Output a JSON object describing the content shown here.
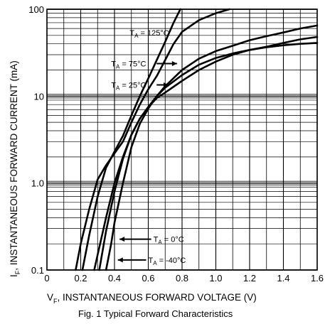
{
  "chart_data": {
    "type": "line",
    "caption": "Fig. 1  Typical Forward Characteristics",
    "xlabel_prefix": "V",
    "xlabel_sub": "F",
    "xlabel_text": ", INSTANTANEOUS FORWARD VOLTAGE (V)",
    "ylabel_prefix": "I",
    "ylabel_sub": "F",
    "ylabel_text": ", INSTANTANEOUS FORWARD CURRENT (mA)",
    "xlim": [
      0,
      1.6
    ],
    "ylim": [
      0.1,
      100
    ],
    "yscale": "log",
    "grid": true,
    "x_ticks": [
      0,
      0.2,
      0.4,
      0.6,
      0.8,
      1.0,
      1.2,
      1.4,
      1.6
    ],
    "x_tick_labels": [
      "0",
      "0.2",
      "0.4",
      "0.6",
      "0.8",
      "1.0",
      "1.2",
      "1.4",
      "1.6"
    ],
    "y_ticks": [
      0.1,
      1,
      10,
      100
    ],
    "y_tick_labels": [
      "0.1",
      "1.0",
      "10",
      "100"
    ],
    "series": [
      {
        "label_prefix": "T",
        "label_sub": "A",
        "label_value": " = 125°C",
        "x": [
          0.17,
          0.2,
          0.25,
          0.3,
          0.35,
          0.4,
          0.45,
          0.5,
          0.55,
          0.6,
          0.65,
          0.7,
          0.75,
          0.8,
          0.9,
          1.0,
          1.08
        ],
        "y": [
          0.1,
          0.2,
          0.5,
          1.1,
          1.6,
          2.2,
          3.0,
          5.0,
          8.0,
          12.0,
          17.0,
          26.0,
          40.0,
          55.0,
          75.0,
          90.0,
          100.0
        ]
      },
      {
        "label_prefix": "T",
        "label_sub": "A",
        "label_value": " = 75°C",
        "x": [
          0.21,
          0.25,
          0.3,
          0.35,
          0.4,
          0.45,
          0.5,
          0.55,
          0.6,
          0.65,
          0.7,
          0.75,
          0.79
        ],
        "y": [
          0.1,
          0.25,
          0.7,
          1.5,
          2.3,
          3.5,
          6.0,
          10.0,
          16.0,
          26.0,
          42.0,
          70.0,
          100.0
        ]
      },
      {
        "label_prefix": "T",
        "label_sub": "A",
        "label_value": " = 25°C",
        "x": [
          0.28,
          0.3,
          0.35,
          0.4,
          0.45,
          0.5,
          0.55,
          0.6,
          0.65,
          0.7,
          0.8,
          0.9,
          1.0,
          1.1,
          1.2,
          1.3,
          1.4,
          1.5,
          1.6
        ],
        "y": [
          0.1,
          0.15,
          0.4,
          1.0,
          2.0,
          3.6,
          5.5,
          7.5,
          9.5,
          11.0,
          15.0,
          20.0,
          25.0,
          30.0,
          34.0,
          37.0,
          41.0,
          45.0,
          48.0
        ]
      },
      {
        "label_prefix": "T",
        "label_sub": "A",
        "label_value": " = 0°C",
        "x": [
          0.31,
          0.35,
          0.4,
          0.45,
          0.5,
          0.55,
          0.6,
          0.65,
          0.7,
          0.8,
          0.9,
          1.0,
          1.1,
          1.2,
          1.3,
          1.4,
          1.5,
          1.6
        ],
        "y": [
          0.1,
          0.28,
          0.8,
          1.9,
          3.6,
          5.5,
          7.5,
          10.0,
          12.5,
          17.5,
          23.0,
          27.5,
          31.0,
          34.0,
          36.5,
          38.5,
          40.0,
          41.0
        ]
      },
      {
        "label_prefix": "T",
        "label_sub": "A",
        "label_value": " = -40°C",
        "x": [
          0.35,
          0.38,
          0.4,
          0.45,
          0.5,
          0.55,
          0.6,
          0.65,
          0.7,
          0.8,
          0.9,
          1.0,
          1.1,
          1.2,
          1.3,
          1.4,
          1.5,
          1.6
        ],
        "y": [
          0.1,
          0.2,
          0.35,
          1.0,
          2.6,
          4.8,
          7.2,
          10.0,
          13.0,
          20.0,
          27.0,
          33.0,
          38.0,
          44.0,
          49.0,
          54.0,
          60.0,
          65.0
        ]
      }
    ]
  }
}
